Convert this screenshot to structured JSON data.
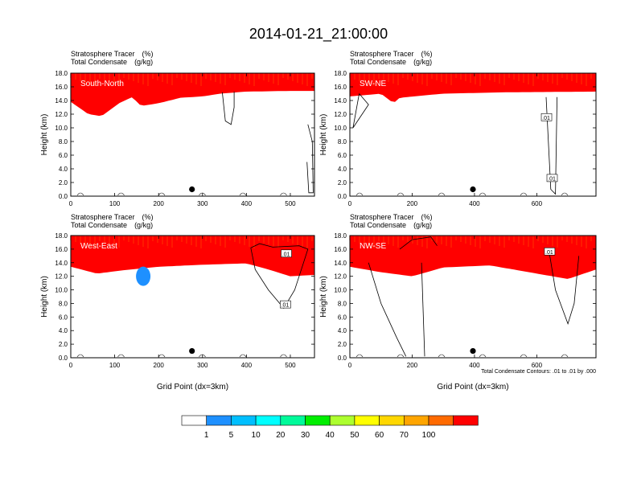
{
  "title": "2014-01-21_21:00:00",
  "colorbar": {
    "colors": [
      "#ffffff",
      "#1e90ff",
      "#00bfff",
      "#00ffff",
      "#00fa9a",
      "#00ee00",
      "#adff2f",
      "#ffff00",
      "#ffd700",
      "#ffa500",
      "#ff6a00",
      "#ff0000"
    ],
    "labels": [
      "1",
      "5",
      "10",
      "20",
      "30",
      "40",
      "50",
      "60",
      "70",
      "100"
    ]
  },
  "chart_data": [
    {
      "type": "contour-filled",
      "region_label": "South-North",
      "title_line1": "Stratosphere Tracer",
      "title_unit1": "(%)",
      "title_line2": "Total Condensate",
      "title_unit2": "(g/kg)",
      "ylabel": "Height (km)",
      "xlabel": "",
      "xlim": [
        0,
        555
      ],
      "ylim": [
        0,
        18
      ],
      "xticks": [
        "0",
        "100",
        "200",
        "300",
        "400",
        "500"
      ],
      "xtick_values": [
        0,
        100,
        200,
        300,
        400,
        500
      ],
      "yticks": [
        "0.0",
        "2.0",
        "4.0",
        "6.0",
        "8.0",
        "10.0",
        "12.0",
        "14.0",
        "16.0",
        "18.0"
      ],
      "tracer_base_km": [
        [
          0,
          13.8
        ],
        [
          40,
          12.0
        ],
        [
          70,
          11.7
        ],
        [
          110,
          13.6
        ],
        [
          140,
          14.5
        ],
        [
          160,
          13.2
        ],
        [
          200,
          13.6
        ],
        [
          250,
          14.4
        ],
        [
          300,
          14.6
        ],
        [
          340,
          15.0
        ],
        [
          400,
          15.3
        ],
        [
          500,
          15.4
        ],
        [
          555,
          15.4
        ]
      ],
      "condensate_contours": [
        {
          "level": 0.01,
          "points": [
            [
              345,
              15.2
            ],
            [
              352,
              11
            ],
            [
              365,
              10.5
            ],
            [
              372,
              13
            ],
            [
              372,
              15.3
            ]
          ]
        },
        {
          "level": 0.01,
          "points": [
            [
              540,
              10.5
            ],
            [
              550,
              8
            ],
            [
              552,
              0.5
            ],
            [
              542,
              0.5
            ],
            [
              538,
              5
            ]
          ]
        }
      ],
      "contour_labels": [],
      "marker": {
        "x": 276,
        "y": 1.0
      }
    },
    {
      "type": "contour-filled",
      "region_label": "SW-NE",
      "title_line1": "Stratosphere Tracer",
      "title_unit1": "(%)",
      "title_line2": "Total Condensate",
      "title_unit2": "(g/kg)",
      "ylabel": "Height (km)",
      "xlabel": "",
      "xlim": [
        0,
        790
      ],
      "ylim": [
        0,
        18
      ],
      "xticks": [
        "0",
        "200",
        "400",
        "600"
      ],
      "xtick_values": [
        0,
        200,
        400,
        600
      ],
      "yticks": [
        "0.0",
        "2.0",
        "4.0",
        "6.0",
        "8.0",
        "10.0",
        "12.0",
        "14.0",
        "16.0",
        "18.0"
      ],
      "tracer_base_km": [
        [
          0,
          14.6
        ],
        [
          100,
          15.0
        ],
        [
          140,
          13.6
        ],
        [
          160,
          14.4
        ],
        [
          300,
          15.0
        ],
        [
          500,
          15.2
        ],
        [
          790,
          15.3
        ]
      ],
      "condensate_contours": [
        {
          "level": 0.01,
          "points": [
            [
              30,
              15
            ],
            [
              60,
              13.4
            ],
            [
              10,
              10
            ],
            [
              30,
              15
            ]
          ]
        },
        {
          "level": 0.01,
          "points": [
            [
              630,
              14.5
            ],
            [
              645,
              1.0
            ],
            [
              660,
              0.3
            ],
            [
              665,
              14.5
            ]
          ]
        }
      ],
      "contour_labels": [
        {
          "text": ".01",
          "x": 630,
          "y": 11.5
        },
        {
          "text": ".01",
          "x": 648,
          "y": 2.6
        }
      ],
      "marker": {
        "x": 395,
        "y": 1.0
      }
    },
    {
      "type": "contour-filled",
      "region_label": "West-East",
      "title_line1": "Stratosphere Tracer",
      "title_unit1": "(%)",
      "title_line2": "Total Condensate",
      "title_unit2": "(g/kg)",
      "ylabel": "Height (km)",
      "xlabel": "Grid Point (dx=3km)",
      "xlim": [
        0,
        555
      ],
      "ylim": [
        0,
        18
      ],
      "xticks": [
        "0",
        "100",
        "200",
        "300",
        "400",
        "500"
      ],
      "xtick_values": [
        0,
        100,
        200,
        300,
        400,
        500
      ],
      "yticks": [
        "0.0",
        "2.0",
        "4.0",
        "6.0",
        "8.0",
        "10.0",
        "12.0",
        "14.0",
        "16.0",
        "18.0"
      ],
      "tracer_base_km": [
        [
          0,
          13.4
        ],
        [
          60,
          12.4
        ],
        [
          120,
          12.9
        ],
        [
          200,
          13.4
        ],
        [
          300,
          13.7
        ],
        [
          400,
          13.9
        ],
        [
          450,
          13.0
        ],
        [
          500,
          12.0
        ],
        [
          555,
          12.2
        ]
      ],
      "condensate_contours": [
        {
          "level": 0.01,
          "points": [
            [
              410,
              16.2
            ],
            [
              420,
              13
            ],
            [
              450,
              10
            ],
            [
              485,
              7.3
            ],
            [
              510,
              10
            ],
            [
              530,
              14
            ],
            [
              540,
              16
            ],
            [
              520,
              16.5
            ],
            [
              460,
              16.3
            ],
            [
              430,
              16.8
            ],
            [
              410,
              16.2
            ]
          ]
        }
      ],
      "contour_labels": [
        {
          "text": ".01",
          "x": 490,
          "y": 15.3
        },
        {
          "text": ".01",
          "x": 488,
          "y": 7.8
        }
      ],
      "blob": {
        "x": 165,
        "y": 12.0
      },
      "marker": {
        "x": 276,
        "y": 1.0
      }
    },
    {
      "type": "contour-filled",
      "region_label": "NW-SE",
      "title_line1": "Stratosphere Tracer",
      "title_unit1": "(%)",
      "title_line2": "Total Condensate",
      "title_unit2": "(g/kg)",
      "ylabel": "Height (km)",
      "xlabel": "Grid Point (dx=3km)",
      "xlim": [
        0,
        790
      ],
      "ylim": [
        0,
        18
      ],
      "xticks": [
        "0",
        "200",
        "400",
        "600"
      ],
      "xtick_values": [
        0,
        200,
        400,
        600
      ],
      "yticks": [
        "0.0",
        "2.0",
        "4.0",
        "6.0",
        "8.0",
        "10.0",
        "12.0",
        "14.0",
        "16.0",
        "18.0"
      ],
      "tracer_base_km": [
        [
          0,
          13.4
        ],
        [
          100,
          12.6
        ],
        [
          200,
          12.0
        ],
        [
          300,
          13.3
        ],
        [
          450,
          13.6
        ],
        [
          600,
          12.4
        ],
        [
          700,
          11.6
        ],
        [
          790,
          13.0
        ]
      ],
      "condensate_contours": [
        {
          "level": 0.01,
          "points": [
            [
              60,
              14
            ],
            [
              100,
              8
            ],
            [
              150,
              3
            ],
            [
              180,
              0.2
            ]
          ]
        },
        {
          "level": 0.01,
          "points": [
            [
              230,
              14
            ],
            [
              240,
              0.2
            ]
          ]
        },
        {
          "level": 0.01,
          "points": [
            [
              160,
              16
            ],
            [
              200,
              17.4
            ],
            [
              260,
              17.8
            ],
            [
              280,
              16.5
            ]
          ]
        },
        {
          "level": 0.01,
          "points": [
            [
              640,
              15.5
            ],
            [
              660,
              10
            ],
            [
              700,
              5
            ],
            [
              720,
              8
            ],
            [
              735,
              15
            ]
          ]
        }
      ],
      "contour_labels": [
        {
          "text": ".01",
          "x": 640,
          "y": 15.6
        }
      ],
      "note": "Total Condensate Contours: .01 to .01 by .000",
      "marker": {
        "x": 395,
        "y": 1.0
      }
    }
  ]
}
